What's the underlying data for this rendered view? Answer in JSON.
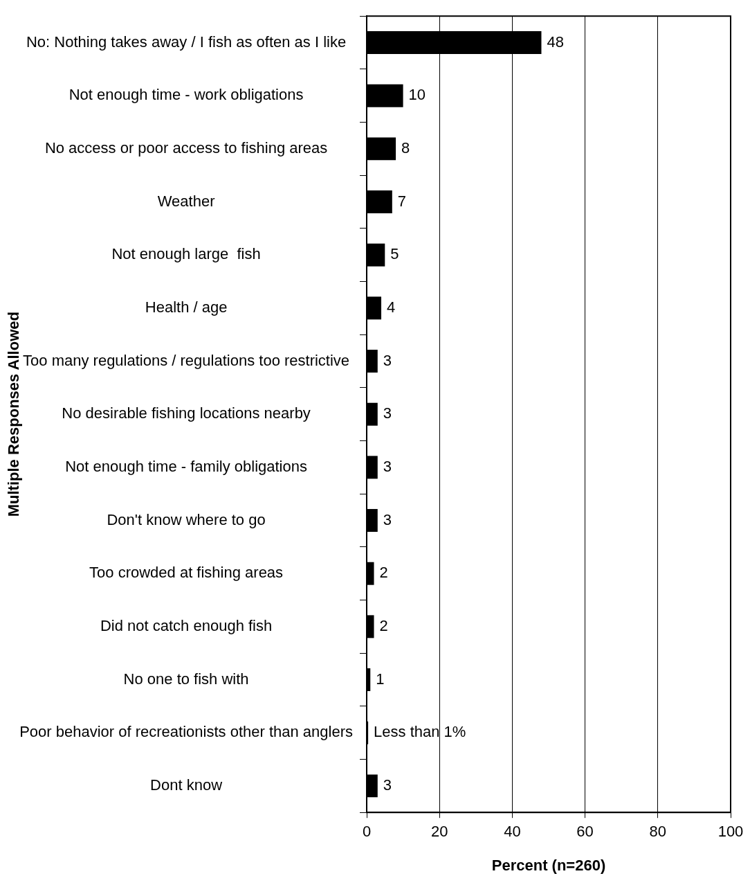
{
  "chart_data": {
    "type": "bar",
    "orientation": "horizontal",
    "xlabel": "Percent (n=260)",
    "ylabel": "Multiple Responses Allowed",
    "categories": [
      "No: Nothing takes away / I fish as often as I like",
      "Not enough time - work obligations",
      "No access or poor access to fishing areas",
      "Weather",
      "Not enough large  fish",
      "Health / age",
      "Too many regulations / regulations too restrictive",
      "No desirable fishing locations nearby",
      "Not enough time - family obligations",
      "Don't know where to go",
      "Too crowded at fishing areas",
      "Did not catch enough fish",
      "No one to fish with",
      "Poor behavior of recreationists other than anglers",
      "Dont know"
    ],
    "values": [
      48,
      10,
      8,
      7,
      5,
      4,
      3,
      3,
      3,
      3,
      2,
      2,
      1,
      0.4,
      3
    ],
    "value_labels": [
      "48",
      "10",
      "8",
      "7",
      "5",
      "4",
      "3",
      "3",
      "3",
      "3",
      "2",
      "2",
      "1",
      "Less than 1%",
      "3"
    ],
    "color": "#000000",
    "xlim": [
      0,
      100
    ],
    "xticks": [
      0,
      20,
      40,
      60,
      80,
      100
    ],
    "grid": "x"
  }
}
